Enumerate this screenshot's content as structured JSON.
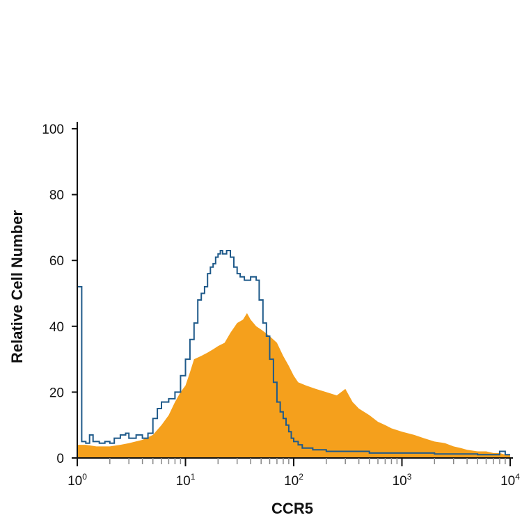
{
  "chart_data": {
    "type": "area",
    "xscale": "log",
    "xlim": [
      1,
      10000
    ],
    "ylim": [
      0,
      100
    ],
    "xlabel": "CCR5",
    "ylabel": "Relative Cell Number",
    "y_ticks": [
      "0",
      "20",
      "40",
      "60",
      "80",
      "100"
    ],
    "x_ticks": [
      {
        "value": 1,
        "base": "10",
        "exp": "0"
      },
      {
        "value": 10,
        "base": "10",
        "exp": "1"
      },
      {
        "value": 100,
        "base": "10",
        "exp": "2"
      },
      {
        "value": 1000,
        "base": "10",
        "exp": "3"
      },
      {
        "value": 10000,
        "base": "10",
        "exp": "4"
      }
    ],
    "grid": false,
    "series": [
      {
        "style": "filled",
        "color": "#F5A01C",
        "points": [
          [
            1,
            4
          ],
          [
            1.2,
            4
          ],
          [
            1.5,
            3.5
          ],
          [
            2,
            3.5
          ],
          [
            2.5,
            4
          ],
          [
            3,
            4.5
          ],
          [
            4,
            5.5
          ],
          [
            5,
            7
          ],
          [
            6,
            10
          ],
          [
            7,
            13
          ],
          [
            8,
            17
          ],
          [
            9,
            20
          ],
          [
            10,
            22
          ],
          [
            11,
            26
          ],
          [
            12,
            30
          ],
          [
            14,
            31
          ],
          [
            16,
            32
          ],
          [
            18,
            33
          ],
          [
            20,
            34
          ],
          [
            23,
            35
          ],
          [
            26,
            38
          ],
          [
            30,
            41
          ],
          [
            34,
            42
          ],
          [
            37,
            44
          ],
          [
            40,
            42
          ],
          [
            45,
            40
          ],
          [
            50,
            39
          ],
          [
            55,
            38
          ],
          [
            60,
            37
          ],
          [
            70,
            35
          ],
          [
            80,
            31
          ],
          [
            90,
            28
          ],
          [
            100,
            25
          ],
          [
            110,
            23
          ],
          [
            130,
            22
          ],
          [
            160,
            21
          ],
          [
            200,
            20
          ],
          [
            250,
            19
          ],
          [
            300,
            21
          ],
          [
            350,
            17
          ],
          [
            400,
            15
          ],
          [
            500,
            13
          ],
          [
            600,
            11
          ],
          [
            700,
            10
          ],
          [
            800,
            9
          ],
          [
            1000,
            8
          ],
          [
            1300,
            7
          ],
          [
            1600,
            6
          ],
          [
            2000,
            5
          ],
          [
            2500,
            4.5
          ],
          [
            3000,
            3.5
          ],
          [
            3500,
            3
          ],
          [
            4000,
            2.5
          ],
          [
            5000,
            2
          ],
          [
            6000,
            2
          ],
          [
            7000,
            1.5
          ],
          [
            8000,
            1.5
          ],
          [
            9000,
            1
          ],
          [
            10000,
            1
          ]
        ]
      },
      {
        "style": "outline",
        "color": "#1F5A8A",
        "points": [
          [
            1,
            52
          ],
          [
            1.09,
            52
          ],
          [
            1.1,
            5
          ],
          [
            1.2,
            4.5
          ],
          [
            1.3,
            7
          ],
          [
            1.4,
            5
          ],
          [
            1.6,
            4.5
          ],
          [
            1.8,
            5
          ],
          [
            2,
            4.5
          ],
          [
            2.2,
            6
          ],
          [
            2.5,
            7
          ],
          [
            2.8,
            7.5
          ],
          [
            3,
            6
          ],
          [
            3.5,
            7
          ],
          [
            4,
            6
          ],
          [
            4.5,
            7.5
          ],
          [
            5,
            12
          ],
          [
            5.5,
            15
          ],
          [
            6,
            17
          ],
          [
            7,
            18
          ],
          [
            8,
            20
          ],
          [
            9,
            25
          ],
          [
            10,
            30
          ],
          [
            11,
            36
          ],
          [
            12,
            41
          ],
          [
            13,
            48
          ],
          [
            14,
            50
          ],
          [
            15,
            52
          ],
          [
            16,
            56
          ],
          [
            17,
            58
          ],
          [
            18,
            59
          ],
          [
            19,
            61
          ],
          [
            20,
            62
          ],
          [
            21,
            63
          ],
          [
            22,
            62
          ],
          [
            24,
            63
          ],
          [
            26,
            61
          ],
          [
            28,
            58
          ],
          [
            30,
            56
          ],
          [
            32,
            55
          ],
          [
            35,
            54
          ],
          [
            40,
            55
          ],
          [
            45,
            54
          ],
          [
            48,
            48
          ],
          [
            52,
            41
          ],
          [
            56,
            37
          ],
          [
            60,
            30
          ],
          [
            65,
            23
          ],
          [
            70,
            17
          ],
          [
            75,
            14
          ],
          [
            80,
            12
          ],
          [
            85,
            10
          ],
          [
            90,
            8
          ],
          [
            95,
            6
          ],
          [
            100,
            5
          ],
          [
            110,
            4
          ],
          [
            120,
            3
          ],
          [
            150,
            2.5
          ],
          [
            200,
            2
          ],
          [
            300,
            2
          ],
          [
            400,
            2
          ],
          [
            500,
            1.5
          ],
          [
            600,
            1.5
          ],
          [
            800,
            1.5
          ],
          [
            1000,
            1.5
          ],
          [
            2000,
            1.2
          ],
          [
            3000,
            1.2
          ],
          [
            5000,
            1
          ],
          [
            7000,
            1
          ],
          [
            8000,
            2
          ],
          [
            9000,
            1
          ],
          [
            10000,
            1
          ]
        ]
      }
    ]
  }
}
